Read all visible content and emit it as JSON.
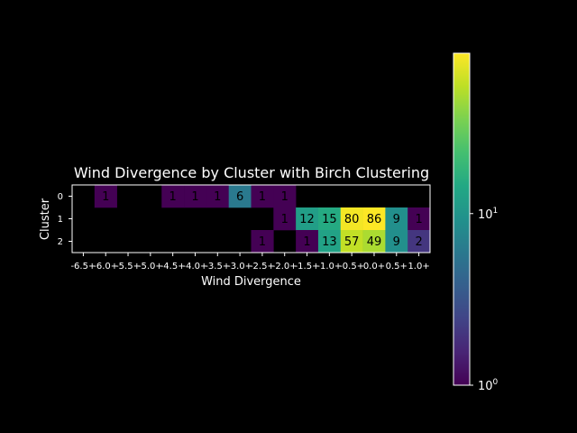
{
  "chart_data": {
    "type": "heatmap",
    "title": "Wind Divergence by Cluster with Birch Clustering",
    "xlabel": "Wind Divergence",
    "ylabel": "Cluster",
    "x_tick_labels": [
      "-6.5+",
      "-6.0+",
      "-5.5+",
      "-5.0+",
      "-4.5+",
      "-4.0+",
      "-3.5+",
      "-3.0+",
      "-2.5+",
      "-2.0+",
      "-1.5+",
      "-1.0+",
      "-0.5+",
      "0.0+",
      "0.5+",
      "1.0+"
    ],
    "y_tick_labels": [
      "0",
      "1",
      "2"
    ],
    "values": [
      [
        null,
        1,
        null,
        null,
        1,
        1,
        1,
        6,
        1,
        1,
        null,
        null,
        null,
        null,
        null,
        null
      ],
      [
        null,
        null,
        null,
        null,
        null,
        null,
        null,
        null,
        null,
        1,
        12,
        15,
        80,
        86,
        9,
        1
      ],
      [
        null,
        null,
        null,
        null,
        null,
        null,
        null,
        null,
        1,
        null,
        1,
        13,
        57,
        49,
        9,
        2
      ]
    ],
    "color_scale": "log",
    "colormap": "viridis",
    "colorbar_range": [
      1,
      86
    ],
    "colorbar_ticks": [
      {
        "value": 1,
        "base": "10",
        "exp": "0"
      },
      {
        "value": 10,
        "base": "10",
        "exp": "1"
      }
    ],
    "background_color": "#000000",
    "grid": false
  }
}
